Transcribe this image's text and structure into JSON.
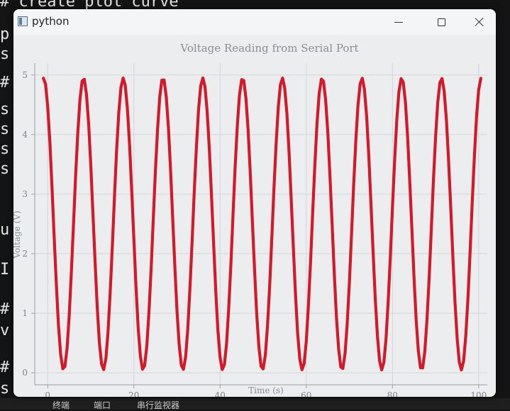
{
  "background": {
    "code_lines": [
      "# create plot curve",
      "p",
      "s",
      "#",
      "s",
      "s",
      "s",
      "s",
      "u",
      "I",
      "#",
      "v",
      "#",
      "s"
    ],
    "bottom_bar": [
      "终端",
      "端口",
      "串行监视器"
    ]
  },
  "window": {
    "title": "python",
    "icon": "python-window-icon",
    "controls": [
      "minimize-icon",
      "maximize-icon",
      "close-icon"
    ]
  },
  "chart_data": {
    "type": "line",
    "title": "Voltage Reading from Serial Port",
    "xlabel": "Time (s)",
    "ylabel": "Voltage (V)",
    "xlim": [
      -3,
      102
    ],
    "ylim": [
      -0.2,
      5.2
    ],
    "xticks": [
      0,
      20,
      40,
      60,
      80,
      100
    ],
    "yticks": [
      0,
      1,
      2,
      3,
      4,
      5
    ],
    "grid": true,
    "line_color": "#d21a2a",
    "series": [
      {
        "sample_interval": 0.5,
        "function": "2.5 + 2.45*sin(2*pi*(t - 8.3)/9.23 + pi/2)",
        "x_start": -1,
        "x_end": 100.5
      }
    ]
  }
}
